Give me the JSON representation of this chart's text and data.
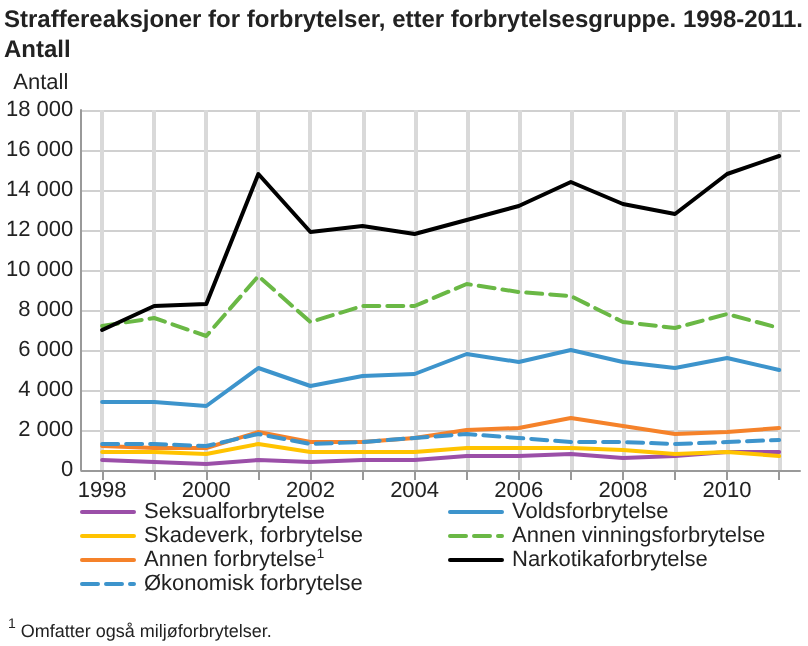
{
  "chart_data": {
    "type": "line",
    "title": "Straffereaksjoner for forbrytelser, etter forbrytelsesgruppe. 1998-2011.\nAntall",
    "ylabel": "Antall",
    "x": [
      1998,
      1999,
      2000,
      2001,
      2002,
      2003,
      2004,
      2005,
      2006,
      2007,
      2008,
      2009,
      2010,
      2011
    ],
    "xlim": [
      1997.6,
      2011.4
    ],
    "xticks": [
      1998,
      {
        "value": 1999,
        "label": null
      },
      2000,
      {
        "value": 2001,
        "label": null
      },
      2002,
      {
        "value": 2003,
        "label": null
      },
      2004,
      {
        "value": 2005,
        "label": null
      },
      2006,
      {
        "value": 2007,
        "label": null
      },
      2008,
      {
        "value": 2009,
        "label": null
      },
      2010,
      {
        "value": 2011,
        "label": null
      }
    ],
    "ylim": [
      0,
      18000
    ],
    "yticks": [
      {
        "value": 0,
        "label": "0"
      },
      {
        "value": 2000,
        "label": "2 000"
      },
      {
        "value": 4000,
        "label": "4 000"
      },
      {
        "value": 6000,
        "label": "6 000"
      },
      {
        "value": 8000,
        "label": "8 000"
      },
      {
        "value": 10000,
        "label": "10 000"
      },
      {
        "value": 12000,
        "label": "12 000"
      },
      {
        "value": 14000,
        "label": "14 000"
      },
      {
        "value": 16000,
        "label": "16 000"
      },
      {
        "value": 18000,
        "label": "18 000"
      }
    ],
    "grid": true,
    "legend": "bottom",
    "marker": "none",
    "series": [
      {
        "name": "Seksualforbrytelse",
        "color": "#9b4fa8",
        "line_style": "solid",
        "values": [
          500,
          400,
          300,
          500,
          400,
          500,
          500,
          700,
          700,
          800,
          600,
          700,
          900,
          900
        ]
      },
      {
        "name": "Skadeverk, forbrytelse",
        "color": "#ffc300",
        "line_style": "solid",
        "values": [
          900,
          900,
          800,
          1300,
          900,
          900,
          900,
          1100,
          1100,
          1100,
          1000,
          800,
          900,
          700
        ]
      },
      {
        "name": "Annen forbrytelse$^{1}$",
        "color": "#f5822a",
        "line_style": "solid",
        "values": [
          1200,
          1100,
          1100,
          1900,
          1400,
          1400,
          1600,
          2000,
          2100,
          2600,
          2200,
          1800,
          1900,
          2100
        ]
      },
      {
        "name": "Økonomisk forbrytelse",
        "color": "#3d94cc",
        "line_style": "dashed",
        "values": [
          1300,
          1300,
          1200,
          1800,
          1300,
          1400,
          1600,
          1800,
          1600,
          1400,
          1400,
          1300,
          1400,
          1500
        ]
      },
      {
        "name": "Voldsforbrytelse",
        "color": "#3d94cc",
        "line_style": "solid",
        "values": [
          3400,
          3400,
          3200,
          5100,
          4200,
          4700,
          4800,
          5800,
          5400,
          6000,
          5400,
          5100,
          5600,
          5000
        ]
      },
      {
        "name": "Annen vinningsforbrytelse",
        "color": "#6ab845",
        "line_style": "dashed",
        "values": [
          7200,
          7600,
          6700,
          9700,
          7400,
          8200,
          8200,
          9300,
          8900,
          8700,
          7400,
          7100,
          7800,
          7100
        ]
      },
      {
        "name": "Narkotikaforbrytelse",
        "color": "#000000",
        "line_style": "solid",
        "values": [
          7000,
          8200,
          8300,
          14800,
          11900,
          12200,
          11800,
          12500,
          13200,
          14400,
          13300,
          12800,
          14800,
          15700
        ]
      }
    ],
    "annotations": [
      "$^{1}$ Omfatter også miljøforbrytelser."
    ]
  }
}
